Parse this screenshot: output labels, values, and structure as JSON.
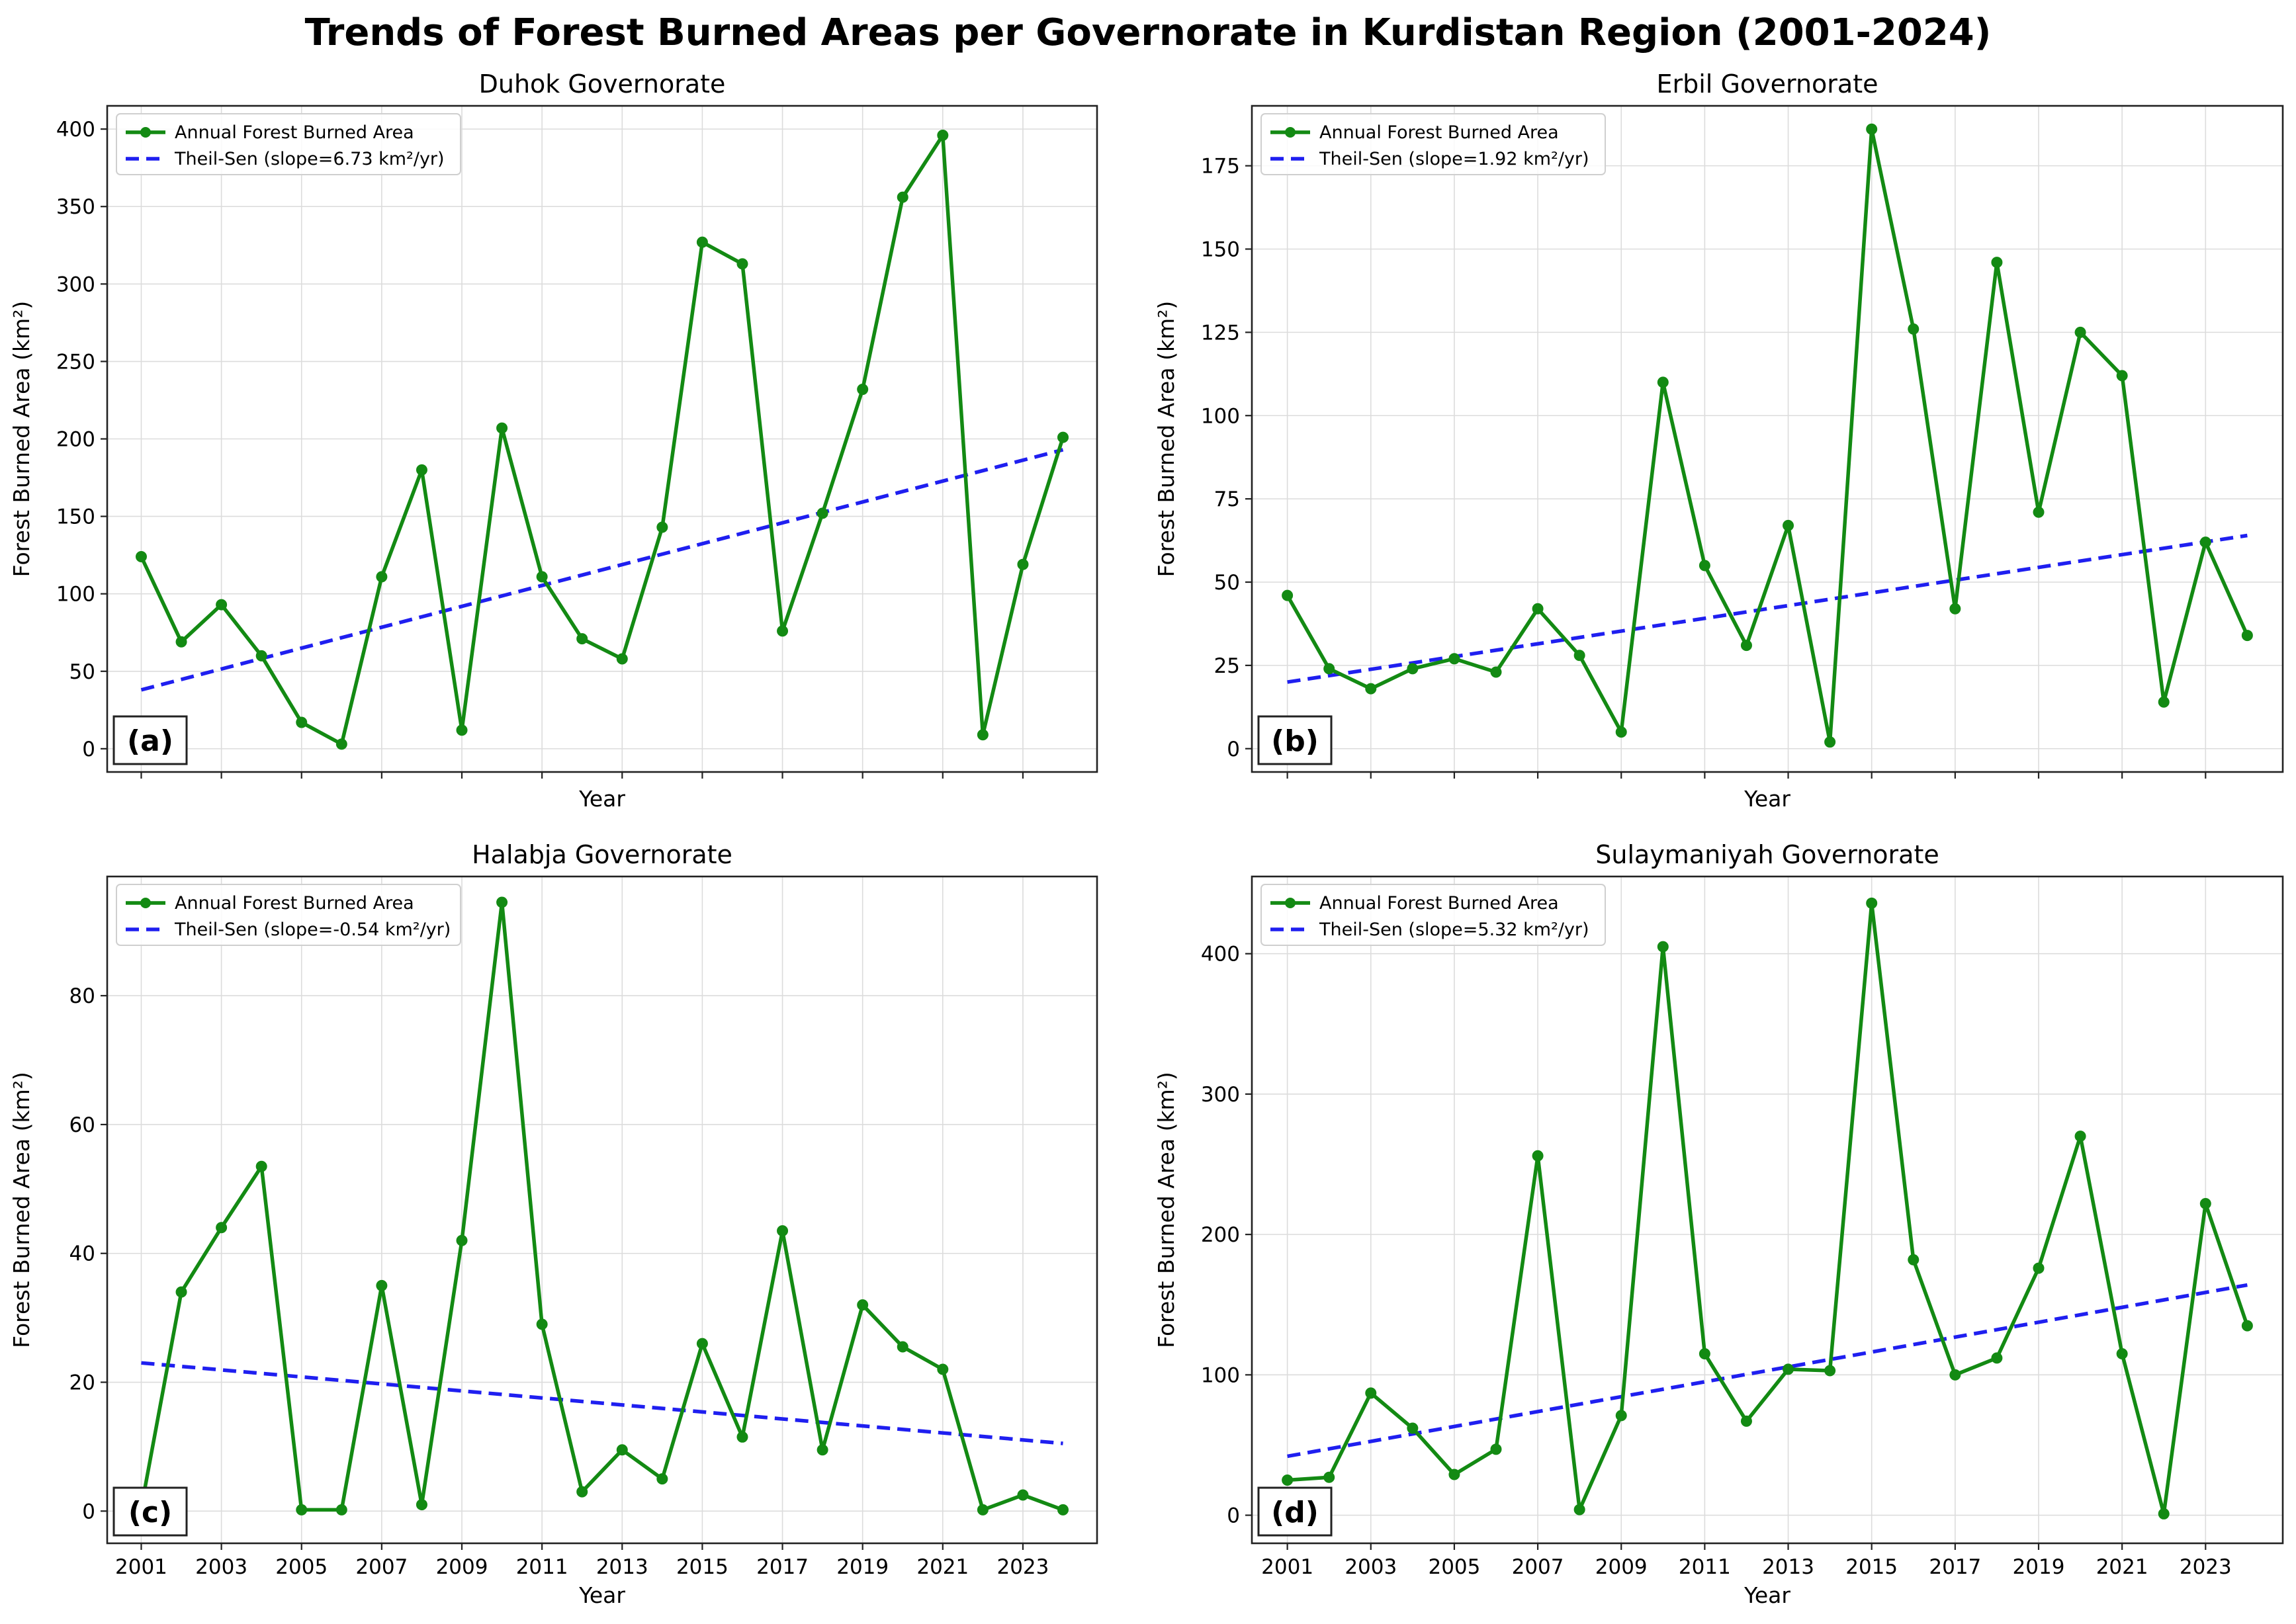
{
  "title": "Trends of Forest Burned Areas per Governorate in Kurdistan Region (2001-2024)",
  "colors": {
    "line": "#138a13",
    "trend": "#1f1ff0"
  },
  "chart_data": [
    {
      "type": "line",
      "title": "Duhok Governorate",
      "panel_label": "(a)",
      "xlabel": "Year",
      "ylabel": "Forest Burned Area (km²)",
      "ylim": [
        -15,
        415
      ],
      "yticks": [
        0,
        50,
        100,
        150,
        200,
        250,
        300,
        350,
        400
      ],
      "show_xtick_labels": false,
      "x": [
        2001,
        2002,
        2003,
        2004,
        2005,
        2006,
        2007,
        2008,
        2009,
        2010,
        2011,
        2012,
        2013,
        2014,
        2015,
        2016,
        2017,
        2018,
        2019,
        2020,
        2021,
        2022,
        2023,
        2024
      ],
      "series": [
        {
          "name": "Annual Forest Burned Area",
          "values": [
            124,
            69,
            93,
            60,
            17,
            3,
            111,
            180,
            12,
            207,
            111,
            71,
            58,
            143,
            327,
            313,
            76,
            152,
            232,
            356,
            396,
            9,
            119,
            201
          ]
        }
      ],
      "trend": {
        "name": "Theil-Sen (slope=6.73 km²/yr)",
        "slope": 6.73,
        "start": [
          2001,
          38
        ],
        "end": [
          2024,
          193
        ]
      }
    },
    {
      "type": "line",
      "title": "Erbil Governorate",
      "panel_label": "(b)",
      "xlabel": "Year",
      "ylabel": "Forest Burned Area (km²)",
      "ylim": [
        -7,
        193
      ],
      "yticks": [
        0,
        25,
        50,
        75,
        100,
        125,
        150,
        175
      ],
      "show_xtick_labels": false,
      "x": [
        2001,
        2002,
        2003,
        2004,
        2005,
        2006,
        2007,
        2008,
        2009,
        2010,
        2011,
        2012,
        2013,
        2014,
        2015,
        2016,
        2017,
        2018,
        2019,
        2020,
        2021,
        2022,
        2023,
        2024
      ],
      "series": [
        {
          "name": "Annual Forest Burned Area",
          "values": [
            46,
            24,
            18,
            24,
            27,
            23,
            42,
            28,
            5,
            110,
            55,
            31,
            67,
            2,
            186,
            126,
            42,
            146,
            71,
            125,
            112,
            14,
            62,
            34
          ]
        }
      ],
      "trend": {
        "name": "Theil-Sen (slope=1.92 km²/yr)",
        "slope": 1.92,
        "start": [
          2001,
          20
        ],
        "end": [
          2024,
          64
        ]
      }
    },
    {
      "type": "line",
      "title": "Halabja Governorate",
      "panel_label": "(c)",
      "xlabel": "Year",
      "ylabel": "Forest Burned Area (km²)",
      "ylim": [
        -5,
        98.5
      ],
      "yticks": [
        0,
        20,
        40,
        60,
        80
      ],
      "show_xtick_labels": true,
      "x": [
        2001,
        2002,
        2003,
        2004,
        2005,
        2006,
        2007,
        2008,
        2009,
        2010,
        2011,
        2012,
        2013,
        2014,
        2015,
        2016,
        2017,
        2018,
        2019,
        2020,
        2021,
        2022,
        2023,
        2024
      ],
      "series": [
        {
          "name": "Annual Forest Burned Area",
          "values": [
            0.5,
            34,
            44,
            53.5,
            0.2,
            0.2,
            35,
            1,
            42,
            94.5,
            29,
            3,
            9.5,
            5,
            26,
            11.5,
            43.5,
            9.5,
            32,
            25.5,
            22,
            0.2,
            2.5,
            0.2
          ]
        }
      ],
      "trend": {
        "name": "Theil-Sen (slope=-0.54 km²/yr)",
        "slope": -0.54,
        "start": [
          2001,
          23
        ],
        "end": [
          2024,
          10.5
        ]
      }
    },
    {
      "type": "line",
      "title": "Sulaymaniyah Governorate",
      "panel_label": "(d)",
      "xlabel": "Year",
      "ylabel": "Forest Burned Area (km²)",
      "ylim": [
        -20,
        455
      ],
      "yticks": [
        0,
        100,
        200,
        300,
        400
      ],
      "show_xtick_labels": true,
      "x": [
        2001,
        2002,
        2003,
        2004,
        2005,
        2006,
        2007,
        2008,
        2009,
        2010,
        2011,
        2012,
        2013,
        2014,
        2015,
        2016,
        2017,
        2018,
        2019,
        2020,
        2021,
        2022,
        2023,
        2024
      ],
      "series": [
        {
          "name": "Annual Forest Burned Area",
          "values": [
            25,
            27,
            87,
            62,
            29,
            47,
            256,
            4,
            71,
            405,
            115,
            67,
            104,
            103,
            436,
            182,
            100,
            112,
            176,
            270,
            115,
            1,
            222,
            135
          ]
        }
      ],
      "trend": {
        "name": "Theil-Sen (slope=5.32 km²/yr)",
        "slope": 5.32,
        "start": [
          2001,
          42
        ],
        "end": [
          2024,
          164
        ]
      }
    }
  ]
}
